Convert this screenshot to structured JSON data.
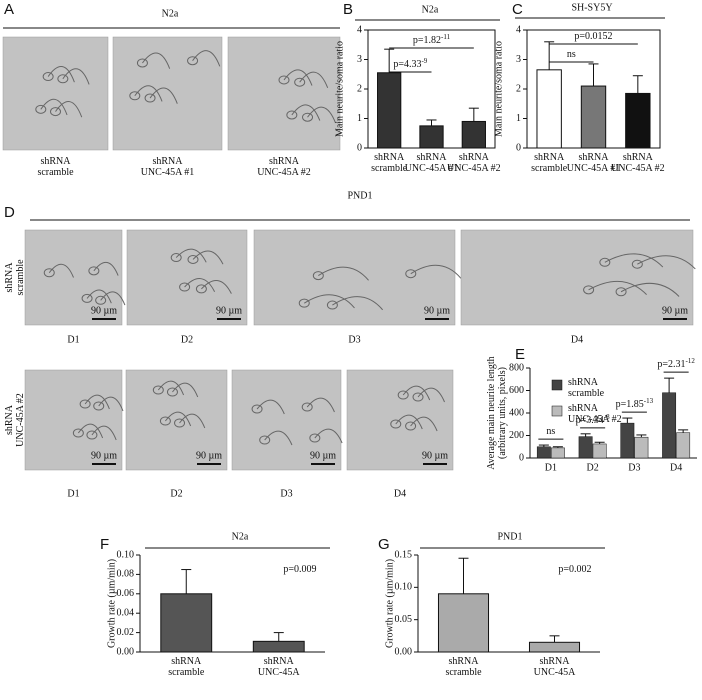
{
  "panels": {
    "a": {
      "letter": "A",
      "title": "N2a",
      "labels": [
        [
          "shRNA",
          "scramble"
        ],
        [
          "shRNA",
          "UNC-45A #1"
        ],
        [
          "shRNA",
          "UNC-45A #2"
        ]
      ]
    },
    "d": {
      "letter": "D",
      "title": "PND1",
      "rows": [
        [
          "shRNA",
          "scramble"
        ],
        [
          "shRNA",
          "UNC-45A #2"
        ]
      ],
      "days": [
        "D1",
        "D2",
        "D3",
        "D4"
      ],
      "scale": "90 µm"
    }
  },
  "chart_data": [
    {
      "type": "bar",
      "panel": "B",
      "title": "N2a",
      "ylabel": "Main neurite/soma ratio",
      "categories": [
        [
          "shRNA",
          "scramble"
        ],
        [
          "shRNA",
          "UNC-45A #1"
        ],
        [
          "shRNA",
          "UNC-45A #2"
        ]
      ],
      "values": [
        2.55,
        0.75,
        0.9
      ],
      "errors": [
        0.8,
        0.2,
        0.45
      ],
      "colors": [
        "#333333",
        "#333333",
        "#333333"
      ],
      "ylim": [
        0,
        4
      ],
      "yticks": [
        0,
        1,
        2,
        3,
        4
      ],
      "annotations": [
        {
          "text": "p=1.82",
          "sup": "-11"
        },
        {
          "text": "p=4.33",
          "sup": "-9"
        }
      ]
    },
    {
      "type": "bar",
      "panel": "C",
      "title": "SH-SY5Y",
      "ylabel": "Main neurite/soma ratio",
      "categories": [
        [
          "shRNA",
          "scramble"
        ],
        [
          "shRNA",
          "UNC-45A #1"
        ],
        [
          "shRNA",
          "UNC-45A #2"
        ]
      ],
      "values": [
        2.65,
        2.1,
        1.85
      ],
      "errors": [
        0.95,
        0.75,
        0.6
      ],
      "colors": [
        "#ffffff",
        "#777777",
        "#111111"
      ],
      "ylim": [
        0,
        4
      ],
      "yticks": [
        0,
        1,
        2,
        3,
        4
      ],
      "annotations": [
        {
          "text": "p=0.0152"
        },
        {
          "text": "ns"
        }
      ]
    },
    {
      "type": "grouped-bar",
      "panel": "E",
      "ylabel": [
        "Average main neurite length",
        "(arbitrary units, pixels)"
      ],
      "categories": [
        "D1",
        "D2",
        "D3",
        "D4"
      ],
      "series": [
        {
          "name": [
            "shRNA",
            "scramble"
          ],
          "color": "#444444",
          "values": [
            100,
            190,
            310,
            580
          ],
          "errors": [
            15,
            25,
            45,
            130
          ]
        },
        {
          "name": [
            "shRNA",
            "UNC-45A #2"
          ],
          "color": "#bbbbbb",
          "values": [
            90,
            125,
            185,
            225
          ],
          "errors": [
            10,
            15,
            20,
            25
          ]
        }
      ],
      "ylim": [
        0,
        800
      ],
      "yticks": [
        0,
        200,
        400,
        600,
        800
      ],
      "annotations": [
        {
          "text": "ns"
        },
        {
          "text": "p=3.34",
          "sup": "-8"
        },
        {
          "text": "p=1.85",
          "sup": "-13"
        },
        {
          "text": "p=2.31",
          "sup": "-12"
        }
      ]
    },
    {
      "type": "bar",
      "panel": "F",
      "title": "N2a",
      "ylabel": "Growth rate (µm/min)",
      "categories": [
        [
          "shRNA",
          "scramble"
        ],
        [
          "shRNA",
          "UNC-45A"
        ]
      ],
      "values": [
        0.06,
        0.011
      ],
      "errors": [
        0.025,
        0.009
      ],
      "colors": [
        "#555555",
        "#555555"
      ],
      "ylim": [
        0,
        0.1
      ],
      "yticks": [
        {
          "value": 0,
          "label": "0.00"
        },
        {
          "value": 0.02,
          "label": "0.02"
        },
        {
          "value": 0.04,
          "label": "0.04"
        },
        {
          "value": 0.06,
          "label": "0.06"
        },
        {
          "value": 0.08,
          "label": "0.08"
        },
        {
          "value": 0.1,
          "label": "0.10"
        }
      ],
      "annotations": [
        {
          "text": "p=0.009"
        }
      ]
    },
    {
      "type": "bar",
      "panel": "G",
      "title": "PND1",
      "ylabel": "Growth rate (µm/min)",
      "categories": [
        [
          "shRNA",
          "scramble"
        ],
        [
          "shRNA",
          "UNC-45A"
        ]
      ],
      "values": [
        0.09,
        0.015
      ],
      "errors": [
        0.055,
        0.01
      ],
      "colors": [
        "#aaaaaa",
        "#aaaaaa"
      ],
      "ylim": [
        0,
        0.15
      ],
      "yticks": [
        {
          "value": 0,
          "label": "0.00"
        },
        {
          "value": 0.05,
          "label": "0.05"
        },
        {
          "value": 0.1,
          "label": "0.10"
        },
        {
          "value": 0.15,
          "label": "0.15"
        }
      ],
      "annotations": [
        {
          "text": "p=0.002"
        }
      ]
    }
  ]
}
